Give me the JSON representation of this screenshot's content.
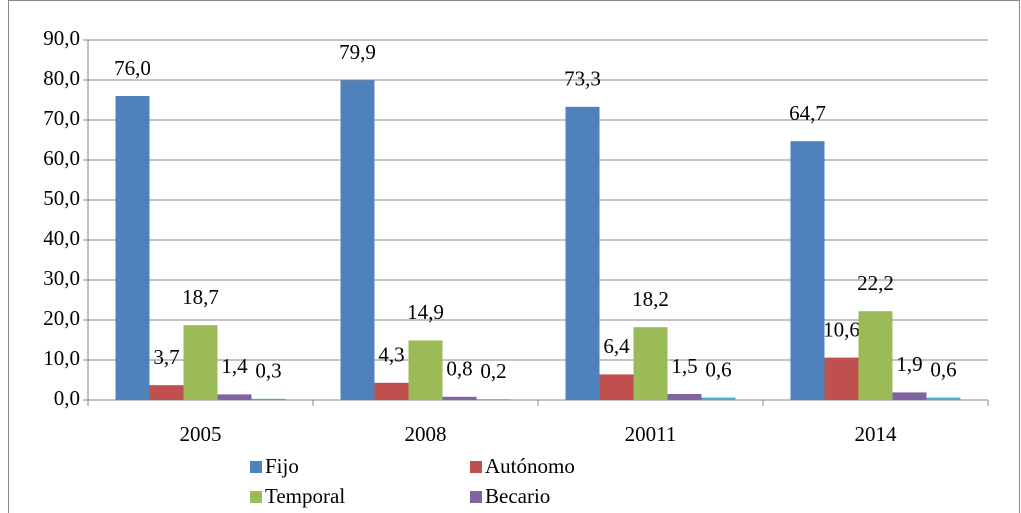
{
  "chart_data": {
    "type": "bar",
    "categories": [
      "2005",
      "2008",
      "20011",
      "2014"
    ],
    "series": [
      {
        "name": "Fijo",
        "color": "#4f81bd",
        "values": [
          76.0,
          79.9,
          73.3,
          64.7
        ],
        "value_labels": [
          "76,0",
          "79,9",
          "73,3",
          "64,7"
        ]
      },
      {
        "name": "Autónomo",
        "color": "#c0504d",
        "values": [
          3.7,
          4.3,
          6.4,
          10.6
        ],
        "value_labels": [
          "3,7",
          "4,3",
          "6,4",
          "10,6"
        ]
      },
      {
        "name": "Temporal",
        "color": "#9bbb59",
        "values": [
          18.7,
          14.9,
          18.2,
          22.2
        ],
        "value_labels": [
          "18,7",
          "14,9",
          "18,2",
          "22,2"
        ]
      },
      {
        "name": "Becario",
        "color": "#8064a2",
        "values": [
          1.4,
          0.8,
          1.5,
          1.9
        ],
        "value_labels": [
          "1,4",
          "0,8",
          "1,5",
          "1,9"
        ]
      },
      {
        "color": "#4bacc6",
        "values": [
          0.3,
          0.2,
          0.6,
          0.6
        ],
        "value_labels": [
          "0,3",
          "0,2",
          "0,6",
          "0,6"
        ]
      }
    ],
    "ylim": [
      0,
      90
    ],
    "yticks": [
      {
        "value": 0,
        "label": "0,0"
      },
      {
        "value": 10,
        "label": "10,0"
      },
      {
        "value": 20,
        "label": "20,0"
      },
      {
        "value": 30,
        "label": "30,0"
      },
      {
        "value": 40,
        "label": "40,0"
      },
      {
        "value": 50,
        "label": "50,0"
      },
      {
        "value": 60,
        "label": "60,0"
      },
      {
        "value": 70,
        "label": "70,0"
      },
      {
        "value": 80,
        "label": "80,0"
      },
      {
        "value": 90,
        "label": "90,0"
      }
    ],
    "grid": true
  }
}
